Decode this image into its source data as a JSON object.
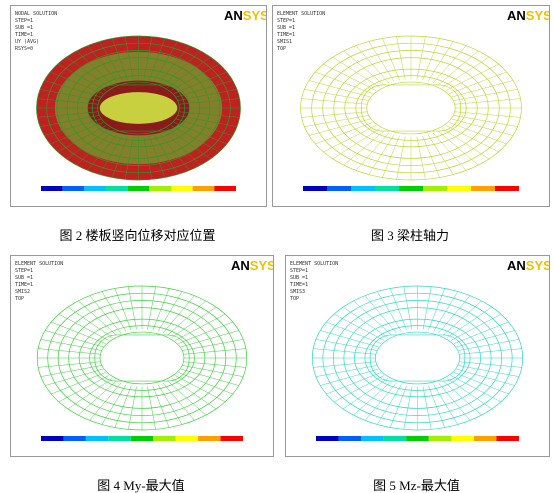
{
  "panels": [
    {
      "header": [
        "NODAL SOLUTION",
        "STEP=1",
        "SUB =1",
        "TIME=1",
        "UY (AVG)",
        "RSYS=0"
      ],
      "logo": [
        "AN",
        "SYS"
      ],
      "caption": "图 2   楼板竖向位移对应位置"
    },
    {
      "header": [
        "ELEMENT SOLUTION",
        "STEP=1",
        "SUB =1",
        "TIME=1",
        "SMIS1",
        "TOP"
      ],
      "logo": [
        "AN",
        "SYS"
      ],
      "caption": "图 3  梁柱轴力"
    },
    {
      "header": [
        "ELEMENT SOLUTION",
        "STEP=1",
        "SUB =1",
        "TIME=1",
        "SMIS2",
        "TOP"
      ],
      "logo": [
        "AN",
        "SYS"
      ],
      "caption": "图 4   My-最大值"
    },
    {
      "header": [
        "ELEMENT SOLUTION",
        "STEP=1",
        "SUB =1",
        "TIME=1",
        "SMIS3",
        "TOP"
      ],
      "logo": [
        "AN",
        "SYS"
      ],
      "caption": "图 5   Mz-最大值"
    }
  ]
}
